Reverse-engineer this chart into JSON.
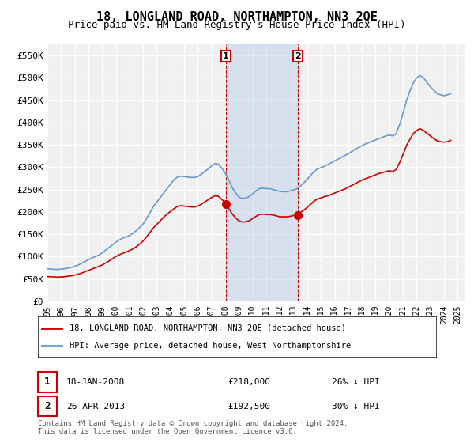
{
  "title": "18, LONGLAND ROAD, NORTHAMPTON, NN3 2QE",
  "subtitle": "Price paid vs. HM Land Registry's House Price Index (HPI)",
  "title_fontsize": 11,
  "subtitle_fontsize": 9,
  "ylim": [
    0,
    575000
  ],
  "yticks": [
    0,
    50000,
    100000,
    150000,
    200000,
    250000,
    300000,
    350000,
    400000,
    450000,
    500000,
    550000
  ],
  "ytick_labels": [
    "£0",
    "£50K",
    "£100K",
    "£150K",
    "£200K",
    "£250K",
    "£300K",
    "£350K",
    "£400K",
    "£450K",
    "£500K",
    "£550K"
  ],
  "xlim_start": 1995.0,
  "xlim_end": 2025.5,
  "background_color": "#ffffff",
  "plot_bg_color": "#f0f0f0",
  "grid_color": "#ffffff",
  "hpi_color": "#6699cc",
  "price_color": "#cc0000",
  "sale1_x": 2008.05,
  "sale1_y": 218000,
  "sale2_x": 2013.32,
  "sale2_y": 192500,
  "sale1_label": "1",
  "sale2_label": "2",
  "shade_x1_start": 2008.05,
  "shade_x1_end": 2013.32,
  "legend_line1": "18, LONGLAND ROAD, NORTHAMPTON, NN3 2QE (detached house)",
  "legend_line2": "HPI: Average price, detached house, West Northamptonshire",
  "table_row1_num": "1",
  "table_row1_date": "18-JAN-2008",
  "table_row1_price": "£218,000",
  "table_row1_hpi": "26% ↓ HPI",
  "table_row2_num": "2",
  "table_row2_date": "26-APR-2013",
  "table_row2_price": "£192,500",
  "table_row2_hpi": "30% ↓ HPI",
  "footnote": "Contains HM Land Registry data © Crown copyright and database right 2024.\nThis data is licensed under the Open Government Licence v3.0.",
  "hpi_data_x": [
    1995.0,
    1995.25,
    1995.5,
    1995.75,
    1996.0,
    1996.25,
    1996.5,
    1996.75,
    1997.0,
    1997.25,
    1997.5,
    1997.75,
    1998.0,
    1998.25,
    1998.5,
    1998.75,
    1999.0,
    1999.25,
    1999.5,
    1999.75,
    2000.0,
    2000.25,
    2000.5,
    2000.75,
    2001.0,
    2001.25,
    2001.5,
    2001.75,
    2002.0,
    2002.25,
    2002.5,
    2002.75,
    2003.0,
    2003.25,
    2003.5,
    2003.75,
    2004.0,
    2004.25,
    2004.5,
    2004.75,
    2005.0,
    2005.25,
    2005.5,
    2005.75,
    2006.0,
    2006.25,
    2006.5,
    2006.75,
    2007.0,
    2007.25,
    2007.5,
    2007.75,
    2008.0,
    2008.25,
    2008.5,
    2008.75,
    2009.0,
    2009.25,
    2009.5,
    2009.75,
    2010.0,
    2010.25,
    2010.5,
    2010.75,
    2011.0,
    2011.25,
    2011.5,
    2011.75,
    2012.0,
    2012.25,
    2012.5,
    2012.75,
    2013.0,
    2013.25,
    2013.5,
    2013.75,
    2014.0,
    2014.25,
    2014.5,
    2014.75,
    2015.0,
    2015.25,
    2015.5,
    2015.75,
    2016.0,
    2016.25,
    2016.5,
    2016.75,
    2017.0,
    2017.25,
    2017.5,
    2017.75,
    2018.0,
    2018.25,
    2018.5,
    2018.75,
    2019.0,
    2019.25,
    2019.5,
    2019.75,
    2020.0,
    2020.25,
    2020.5,
    2020.75,
    2021.0,
    2021.25,
    2021.5,
    2021.75,
    2022.0,
    2022.25,
    2022.5,
    2022.75,
    2023.0,
    2023.25,
    2023.5,
    2023.75,
    2024.0,
    2024.25,
    2024.5
  ],
  "hpi_data_y": [
    73000,
    72000,
    71500,
    71000,
    72000,
    73000,
    74500,
    76000,
    78000,
    81000,
    85000,
    89000,
    93000,
    97000,
    100000,
    103000,
    108000,
    114000,
    120000,
    126000,
    132000,
    137000,
    141000,
    144000,
    147000,
    152000,
    158000,
    165000,
    173000,
    185000,
    198000,
    212000,
    222000,
    232000,
    242000,
    252000,
    262000,
    271000,
    278000,
    280000,
    279000,
    278000,
    277000,
    277000,
    279000,
    284000,
    290000,
    296000,
    303000,
    308000,
    307000,
    298000,
    287000,
    272000,
    255000,
    243000,
    233000,
    230000,
    231000,
    234000,
    240000,
    247000,
    252000,
    253000,
    252000,
    252000,
    250000,
    248000,
    246000,
    245000,
    245000,
    247000,
    249000,
    252000,
    258000,
    265000,
    273000,
    282000,
    290000,
    296000,
    299000,
    302000,
    306000,
    310000,
    314000,
    318000,
    322000,
    326000,
    330000,
    335000,
    340000,
    344000,
    348000,
    352000,
    355000,
    358000,
    361000,
    364000,
    367000,
    370000,
    372000,
    370000,
    375000,
    395000,
    420000,
    448000,
    470000,
    488000,
    500000,
    505000,
    500000,
    490000,
    480000,
    472000,
    465000,
    462000,
    460000,
    462000,
    465000
  ],
  "price_data_x": [
    1995.0,
    1995.25,
    1995.5,
    1995.75,
    1996.0,
    1996.25,
    1996.5,
    1996.75,
    1997.0,
    1997.25,
    1997.5,
    1997.75,
    1998.0,
    1998.25,
    1998.5,
    1998.75,
    1999.0,
    1999.25,
    1999.5,
    1999.75,
    2000.0,
    2000.25,
    2000.5,
    2000.75,
    2001.0,
    2001.25,
    2001.5,
    2001.75,
    2002.0,
    2002.25,
    2002.5,
    2002.75,
    2003.0,
    2003.25,
    2003.5,
    2003.75,
    2004.0,
    2004.25,
    2004.5,
    2004.75,
    2005.0,
    2005.25,
    2005.5,
    2005.75,
    2006.0,
    2006.25,
    2006.5,
    2006.75,
    2007.0,
    2007.25,
    2007.5,
    2007.75,
    2008.0,
    2008.25,
    2008.5,
    2008.75,
    2009.0,
    2009.25,
    2009.5,
    2009.75,
    2010.0,
    2010.25,
    2010.5,
    2010.75,
    2011.0,
    2011.25,
    2011.5,
    2011.75,
    2012.0,
    2012.25,
    2012.5,
    2012.75,
    2013.0,
    2013.25,
    2013.5,
    2013.75,
    2014.0,
    2014.25,
    2014.5,
    2014.75,
    2015.0,
    2015.25,
    2015.5,
    2015.75,
    2016.0,
    2016.25,
    2016.5,
    2016.75,
    2017.0,
    2017.25,
    2017.5,
    2017.75,
    2018.0,
    2018.25,
    2018.5,
    2018.75,
    2019.0,
    2019.25,
    2019.5,
    2019.75,
    2020.0,
    2020.25,
    2020.5,
    2020.75,
    2021.0,
    2021.25,
    2021.5,
    2021.75,
    2022.0,
    2022.25,
    2022.5,
    2022.75,
    2023.0,
    2023.25,
    2023.5,
    2023.75,
    2024.0,
    2024.25,
    2024.5
  ],
  "price_data_y": [
    55000,
    55000,
    54500,
    54000,
    54500,
    55000,
    56000,
    57000,
    58500,
    60500,
    63000,
    66000,
    69000,
    72000,
    75000,
    78000,
    81000,
    85500,
    90000,
    95000,
    100000,
    104000,
    107000,
    110000,
    113000,
    117000,
    122000,
    128000,
    135000,
    144000,
    154000,
    164000,
    172000,
    180000,
    188000,
    195000,
    201000,
    207000,
    212000,
    214000,
    213000,
    212000,
    211000,
    211000,
    213000,
    217000,
    222000,
    227000,
    232000,
    236000,
    235000,
    228000,
    220000,
    208000,
    196000,
    187000,
    180000,
    177000,
    178000,
    180000,
    185000,
    190000,
    194000,
    195000,
    194000,
    194000,
    193000,
    191000,
    189000,
    189000,
    189000,
    190000,
    192000,
    194000,
    199000,
    204000,
    210000,
    217000,
    224000,
    229000,
    231000,
    234000,
    236000,
    239000,
    242000,
    245000,
    248000,
    251000,
    255000,
    259000,
    263000,
    267000,
    271000,
    274000,
    277000,
    280000,
    283000,
    286000,
    288000,
    290000,
    292000,
    290000,
    295000,
    310000,
    328000,
    348000,
    362000,
    375000,
    382000,
    386000,
    382000,
    376000,
    370000,
    364000,
    359000,
    357000,
    356000,
    357000,
    360000
  ]
}
